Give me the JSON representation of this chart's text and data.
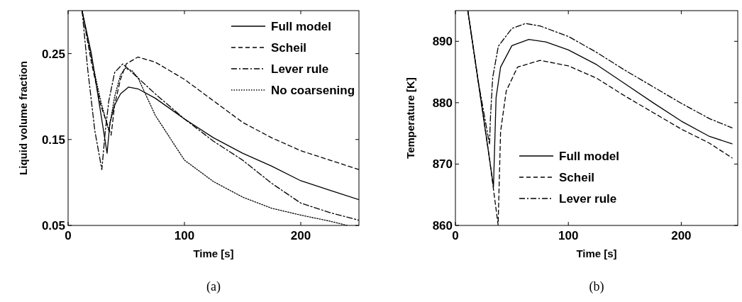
{
  "chart_data": [
    {
      "type": "line",
      "xlabel": "Time [s]",
      "ylabel": "Liquid volume fraction",
      "xlim": [
        0,
        250
      ],
      "ylim": [
        0.05,
        0.3
      ],
      "xticks": [
        0,
        100,
        200
      ],
      "yticks": [
        0.05,
        0.15,
        0.25
      ],
      "legend": "top right",
      "grid": false,
      "annotations": [
        "(a)"
      ],
      "series": [
        {
          "name": "Full model",
          "color": "#000000",
          "line_style": "solid",
          "x": [
            12,
            20,
            27,
            33.5,
            36,
            40,
            45,
            52,
            60,
            75,
            100,
            125,
            150,
            175,
            200,
            225,
            250
          ],
          "values": [
            0.3,
            0.25,
            0.19,
            0.134,
            0.17,
            0.19,
            0.203,
            0.211,
            0.209,
            0.198,
            0.174,
            0.152,
            0.134,
            0.119,
            0.102,
            0.091,
            0.08
          ]
        },
        {
          "name": "Scheil",
          "color": "#000000",
          "line_style": "dashed",
          "x": [
            12,
            20,
            28,
            37,
            40,
            45,
            50,
            60,
            75,
            100,
            125,
            150,
            175,
            200,
            225,
            250
          ],
          "values": [
            0.3,
            0.24,
            0.19,
            0.155,
            0.19,
            0.22,
            0.238,
            0.246,
            0.24,
            0.22,
            0.195,
            0.17,
            0.152,
            0.137,
            0.126,
            0.115
          ]
        },
        {
          "name": "Lever rule",
          "color": "#000000",
          "line_style": "dashdot",
          "x": [
            12,
            17,
            23,
            29,
            32,
            35,
            40,
            47,
            55,
            75,
            100,
            125,
            150,
            175,
            200,
            225,
            250
          ],
          "values": [
            0.3,
            0.23,
            0.16,
            0.115,
            0.16,
            0.195,
            0.228,
            0.238,
            0.228,
            0.203,
            0.174,
            0.148,
            0.126,
            0.099,
            0.076,
            0.065,
            0.056
          ]
        },
        {
          "name": "No coarsening",
          "color": "#000000",
          "line_style": "dotted",
          "x": [
            12,
            20,
            28,
            35,
            40,
            45,
            49,
            55,
            60,
            75,
            100,
            125,
            150,
            175,
            200,
            225,
            240
          ],
          "values": [
            0.3,
            0.245,
            0.195,
            0.16,
            0.2,
            0.225,
            0.233,
            0.23,
            0.222,
            0.178,
            0.126,
            0.101,
            0.083,
            0.07,
            0.062,
            0.055,
            0.05
          ]
        }
      ]
    },
    {
      "type": "line",
      "xlabel": "Time [s]",
      "ylabel": "Temperature [K]",
      "xlim": [
        0,
        250
      ],
      "ylim": [
        860,
        895
      ],
      "xticks": [
        0,
        100,
        200
      ],
      "yticks": [
        860,
        870,
        880,
        890
      ],
      "legend": "bottom",
      "grid": false,
      "annotations": [
        "(b)"
      ],
      "series": [
        {
          "name": "Full model",
          "color": "#000000",
          "line_style": "solid",
          "x": [
            11,
            20,
            30,
            33.7,
            36,
            40,
            50,
            65,
            80,
            100,
            125,
            150,
            175,
            200,
            225,
            245
          ],
          "values": [
            895,
            883.7,
            871.1,
            866.3,
            880.8,
            885.8,
            889.3,
            890.3,
            889.9,
            888.6,
            886.2,
            883.1,
            880,
            877,
            874.5,
            873.3
          ]
        },
        {
          "name": "Scheil",
          "color": "#000000",
          "line_style": "dashed",
          "x": [
            11,
            20,
            30,
            37.8,
            40,
            45,
            55,
            75,
            100,
            125,
            150,
            175,
            200,
            225,
            245
          ],
          "values": [
            895,
            883.7,
            871.1,
            860.1,
            875.3,
            881.9,
            885.8,
            886.9,
            886,
            884,
            881.1,
            878.4,
            875.7,
            873.4,
            871
          ]
        },
        {
          "name": "Lever rule",
          "color": "#000000",
          "line_style": "dashdot",
          "x": [
            11,
            20,
            30.2,
            31,
            33,
            38,
            50,
            62,
            75,
            100,
            125,
            150,
            175,
            200,
            225,
            245
          ],
          "values": [
            895,
            883.7,
            873.2,
            877.5,
            884.1,
            889.2,
            892.1,
            892.9,
            892.5,
            890.8,
            888.2,
            885.3,
            882.6,
            879.9,
            877.4,
            875.9
          ]
        }
      ]
    }
  ]
}
